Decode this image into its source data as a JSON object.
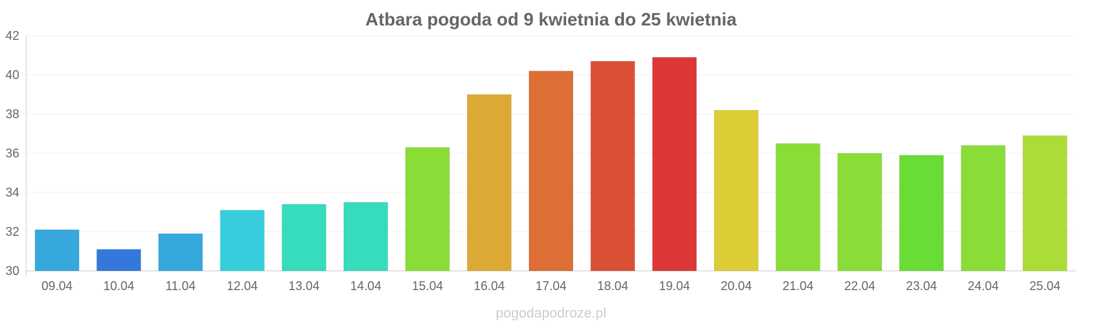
{
  "chart_data": {
    "type": "bar",
    "title": "Atbara pogoda od 9 kwietnia do 25 kwietnia",
    "xlabel": "",
    "ylabel": "",
    "ylim": [
      30,
      42
    ],
    "yticks": [
      "30",
      "32",
      "34",
      "36",
      "38",
      "40",
      "42"
    ],
    "grid": true,
    "categories": [
      "09.04",
      "10.04",
      "11.04",
      "12.04",
      "13.04",
      "14.04",
      "15.04",
      "16.04",
      "17.04",
      "18.04",
      "19.04",
      "20.04",
      "21.04",
      "22.04",
      "23.04",
      "24.04",
      "25.04"
    ],
    "values": [
      32.1,
      31.1,
      31.9,
      33.1,
      33.4,
      33.5,
      36.3,
      39.0,
      40.2,
      40.7,
      40.9,
      38.2,
      36.5,
      36.0,
      35.9,
      36.4,
      36.9
    ],
    "colors": [
      "#36a8dc",
      "#3578dc",
      "#36a8dc",
      "#36cedc",
      "#36dcbc",
      "#36dcbc",
      "#8adc36",
      "#dca836",
      "#dc6e36",
      "#dc5036",
      "#dc3636",
      "#dccc36",
      "#8adc36",
      "#8adc36",
      "#69dc36",
      "#8adc36",
      "#acdc36"
    ]
  },
  "watermark": "pogodapodroze.pl"
}
